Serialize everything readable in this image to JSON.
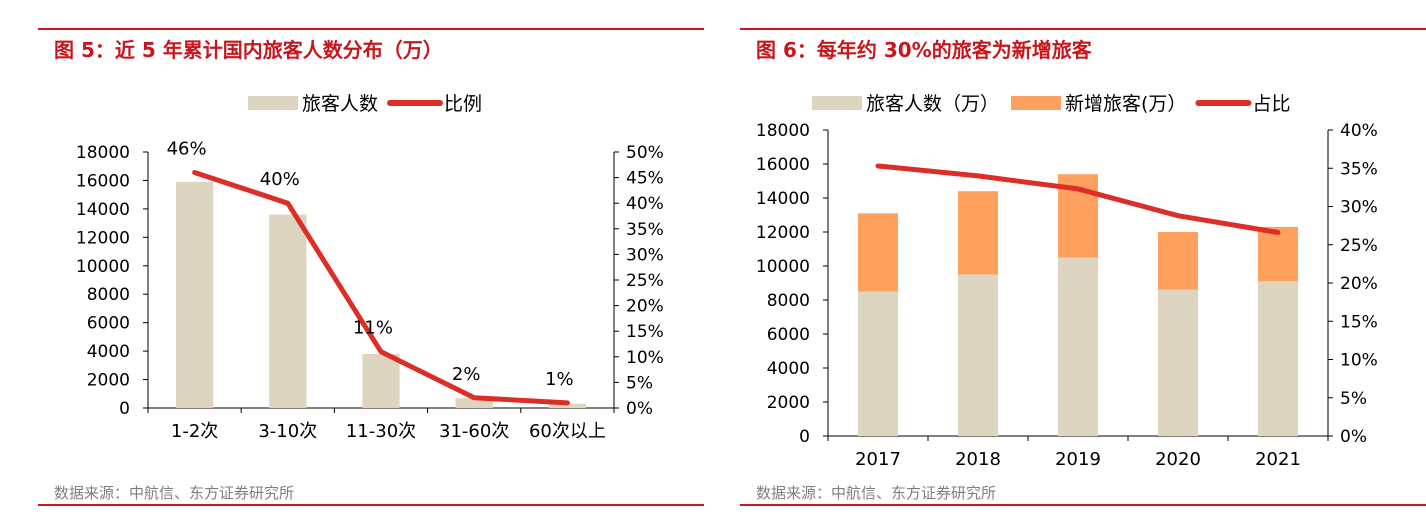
{
  "colors": {
    "accent_red": "#c8161d",
    "bar_beige": "#ddd5c0",
    "bar_orange": "#ffa05e",
    "line_red": "#dd2d27",
    "source_gray": "#7f7f7f"
  },
  "chart_data": [
    {
      "type": "bar",
      "title": "图 5：近 5 年累计国内旅客人数分布（万）",
      "source": "数据来源：中航信、东方证券研究所",
      "categories": [
        "1-2次",
        "3-10次",
        "11-30次",
        "31-60次",
        "60次以上"
      ],
      "series": [
        {
          "name": "旅客人数",
          "type": "bar",
          "axis": "left",
          "values": [
            15900,
            13600,
            3800,
            700,
            300
          ]
        },
        {
          "name": "比例",
          "type": "line",
          "axis": "right",
          "values": [
            46,
            40,
            11,
            2,
            1
          ]
        }
      ],
      "data_labels": [
        "46%",
        "40%",
        "11%",
        "2%",
        "1%"
      ],
      "ylim_left": [
        0,
        18000
      ],
      "yticks_left": [
        "0",
        "2000",
        "4000",
        "6000",
        "8000",
        "10000",
        "12000",
        "14000",
        "16000",
        "18000"
      ],
      "ylim_right": [
        0,
        50
      ],
      "yticks_right": [
        "0%",
        "5%",
        "10%",
        "15%",
        "20%",
        "25%",
        "30%",
        "35%",
        "40%",
        "45%",
        "50%"
      ],
      "legend_position": "top-center"
    },
    {
      "type": "bar",
      "title": "图 6：每年约 30%的旅客为新增旅客",
      "source": "数据来源：中航信、东方证券研究所",
      "categories": [
        "2017",
        "2018",
        "2019",
        "2020",
        "2021"
      ],
      "series": [
        {
          "name": "旅客人数（万）",
          "type": "bar",
          "axis": "left",
          "values": [
            8500,
            9500,
            10500,
            8600,
            9100
          ]
        },
        {
          "name": "新增旅客(万）",
          "type": "stacked-bar",
          "axis": "left",
          "values": [
            4600,
            4900,
            4900,
            3400,
            3200
          ]
        },
        {
          "name": "占比",
          "type": "line",
          "axis": "right",
          "values": [
            35.3,
            34.0,
            32.3,
            28.8,
            26.6
          ]
        }
      ],
      "ylim_left": [
        0,
        18000
      ],
      "yticks_left": [
        "0",
        "2000",
        "4000",
        "6000",
        "8000",
        "10000",
        "12000",
        "14000",
        "16000",
        "18000"
      ],
      "ylim_right": [
        0,
        40
      ],
      "yticks_right": [
        "0%",
        "5%",
        "10%",
        "15%",
        "20%",
        "25%",
        "30%",
        "35%",
        "40%"
      ],
      "legend_position": "top-center"
    }
  ]
}
